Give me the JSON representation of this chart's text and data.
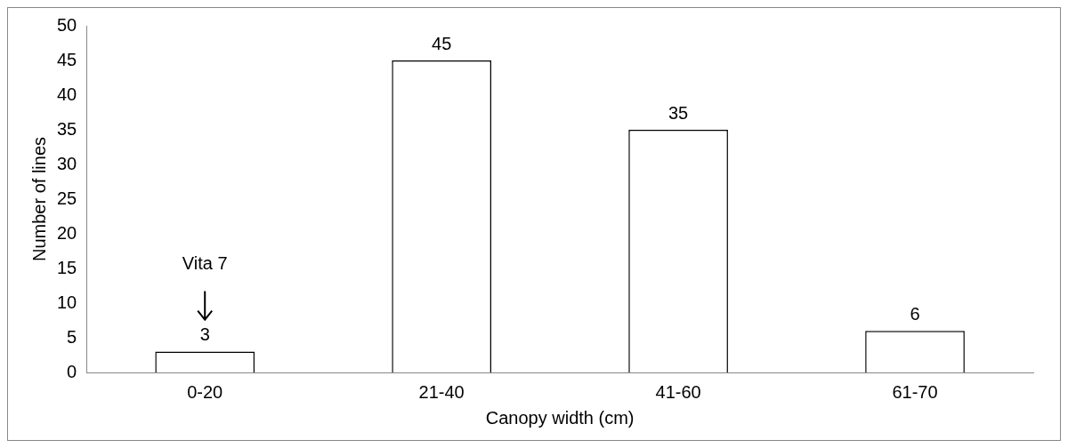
{
  "chart_data": {
    "type": "bar",
    "xlabel": "Canopy width (cm)",
    "ylabel": "Number of lines",
    "categories": [
      "0-20",
      "21-40",
      "41-60",
      "61-70"
    ],
    "values": [
      3,
      45,
      35,
      6
    ],
    "color": "#ffffff",
    "ylim": [
      0,
      50
    ],
    "yticks": [
      0,
      5,
      10,
      15,
      20,
      25,
      30,
      35,
      40,
      45,
      50
    ],
    "grid": false,
    "legend": false,
    "data_labels": true,
    "annotations": [
      "Vita 7"
    ]
  }
}
